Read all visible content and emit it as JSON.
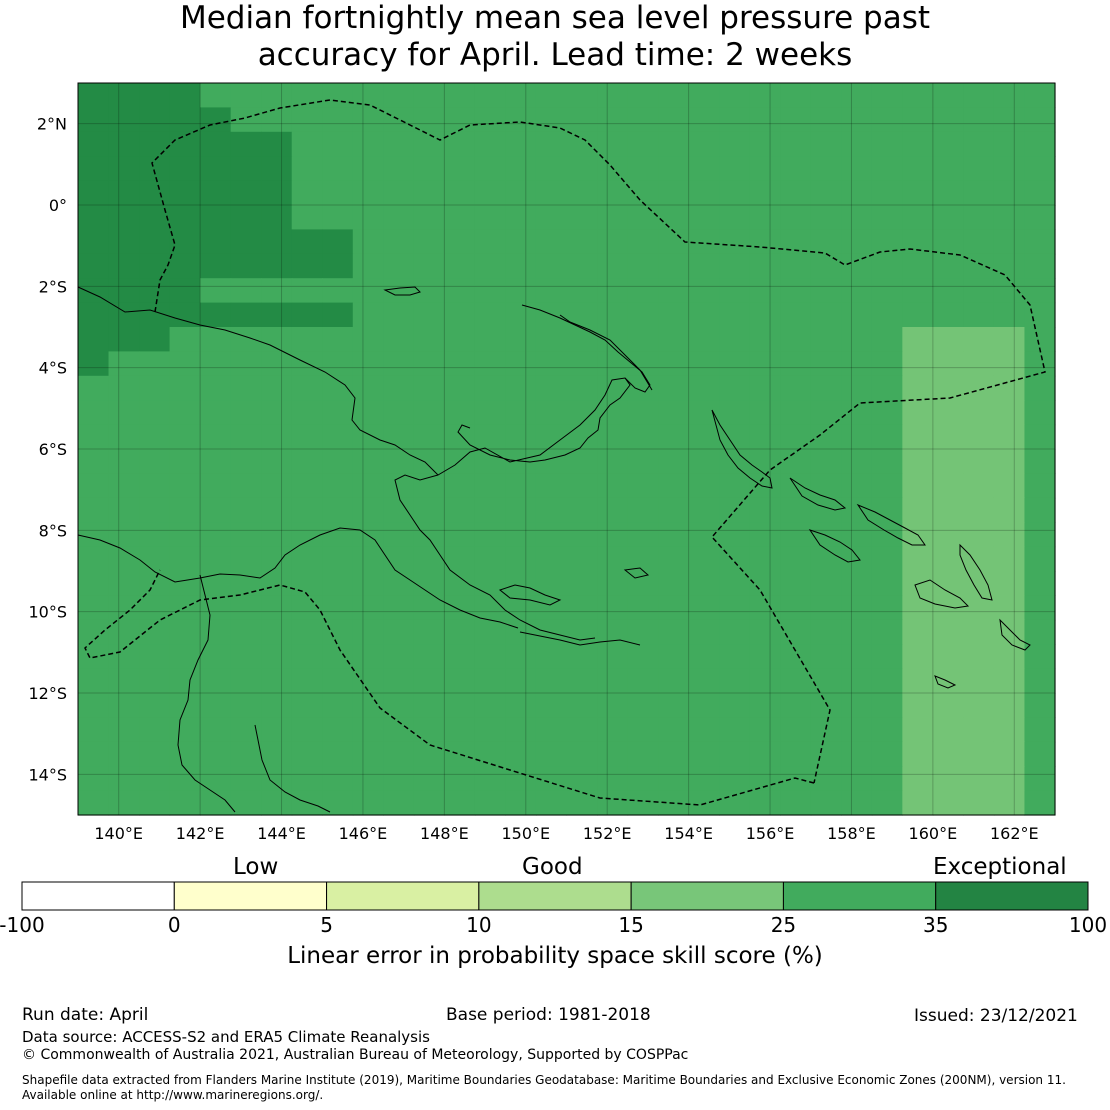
{
  "title_line1": "Median fortnightly mean sea level pressure past",
  "title_line2": "accuracy for April. Lead time: 2 weeks",
  "map": {
    "lon_ticks": [
      "140°E",
      "142°E",
      "144°E",
      "146°E",
      "148°E",
      "150°E",
      "152°E",
      "154°E",
      "156°E",
      "158°E",
      "160°E",
      "162°E"
    ],
    "lat_ticks": [
      "2°N",
      "0°",
      "2°S",
      "4°S",
      "6°S",
      "8°S",
      "10°S",
      "12°S",
      "14°S"
    ],
    "lon_values": [
      140,
      142,
      144,
      146,
      148,
      150,
      152,
      154,
      156,
      158,
      160,
      162
    ],
    "lat_values": [
      2,
      0,
      -2,
      -4,
      -6,
      -8,
      -10,
      -12,
      -14
    ],
    "extent": {
      "lon_min": 139,
      "lon_max": 163,
      "lat_min": -15,
      "lat_max": 3
    },
    "category_colors": {
      "A": "#238b45",
      "B": "#41ab5d",
      "C": "#74c476"
    },
    "skill_grid_note": "Cells coded A=35-100, B=25-35, C=15-25 (%)",
    "skill_grid": [
      "AAAABBBBBBBBBBBBBBBBBBBBBBBBBBBB",
      "AAAAABBBBBBBBBBBBBBBBBBBBBBBBBBB",
      "AAAAAAABBBBBBBBBBBBBBBBBBBBBBBBB",
      "AAAAAAABBBBBBBBBBBBBBBBBBBBBBBBB",
      "AAAAAAABBBBBBBBBBBBBBBBBBBBBBBBB",
      "AAAAAAABBBBBBBBBBBBBBBBBBBBBBBBB",
      "AAAAAAAAABBBBBBBBBBBBBBBBBBBBBBB",
      "AAAAAAAAABBBBBBBBBBBBBBBBBBBBBBB",
      "AAAABBBBBBBBBBBBBBBBBBBBBBBBBBBB",
      "AAAAAAAAABBBBBBBBBBBBBBBBBBBBBBB",
      "AAABBBBBBBBBBBBBBBBBBBBBBBBCCCCB",
      "ABBBBBBBBBBBBBBBBBBBBBBBBBBCCCCB",
      "BBBBBBBBBBBBBBBBBBBBBBBBBBBCCCCB",
      "BBBBBBBBBBBBBBBBBBBBBBBBBBBCCCCB",
      "BBBBBBBBBBBBBBBBBBBBBBBBBBBCCCCB",
      "BBBBBBBBBBBBBBBBBBBBBBBBBBBCCCCB",
      "BBBBBBBBBBBBBBBBBBBBBBBBBBBCCCCB",
      "BBBBBBBBBBBBBBBBBBBBBBBBBBBCCCCB",
      "BBBBBBBBBBBBBBBBBBBBBBBBBBBCCCCB",
      "BBBBBBBBBBBBBBBBBBBBBBBBBBBCCCCB",
      "BBBBBBBBBBBBBBBBBBBBBBBBBBBCCCCB",
      "BBBBBBBBBBBBBBBBBBBBBBBBBBBCCCCB",
      "BBBBBBBBBBBBBBBBBBBBBBBBBBBCCCCB",
      "BBBBBBBBBBBBBBBBBBBBBBBBBBBCCCCB",
      "BBBBBBBBBBBBBBBBBBBBBBBBBBBCCCCB",
      "BBBBBBBBBBBBBBBBBBBBBBBBBBBCCCCB",
      "BBBBBBBBBBBBBBBBBBBBBBBBBBBCCCCB",
      "BBBBBBBBBBBBBBBBBBBBBBBBBBBCCCCB",
      "BBBBBBBBBBBBBBBBBBBBBBBBBBBCCCCB",
      "BBBBBBBBBBBBBBBBBBBBBBBBBBBCCCCB"
    ]
  },
  "colorbar": {
    "categories": [
      "Low",
      "Good",
      "Exceptional"
    ],
    "ticks": [
      "-100",
      "0",
      "5",
      "10",
      "15",
      "25",
      "35",
      "100"
    ],
    "colors": [
      "#ffffff",
      "#ffffcc",
      "#d9f0a3",
      "#addd8e",
      "#78c679",
      "#41ab5d",
      "#238443"
    ],
    "label": "Linear error in probability space skill score (%)"
  },
  "footer": {
    "run_date": "Run date: April",
    "base_period": "Base period: 1981-2018",
    "issued": "Issued: 23/12/2021",
    "data_source": "Data source: ACCESS-S2 and ERA5 Climate Reanalysis",
    "copyright": "© Commonwealth of Australia 2021, Australian Bureau of Meteorology, Supported by COSPPac",
    "shapefile_line1": "Shapefile data extracted from Flanders Marine Institute (2019), Maritime Boundaries Geodatabase: Maritime Boundaries and Exclusive Economic Zones (200NM), version 11.",
    "shapefile_line2": "Available online at http://www.marineregions.org/."
  }
}
